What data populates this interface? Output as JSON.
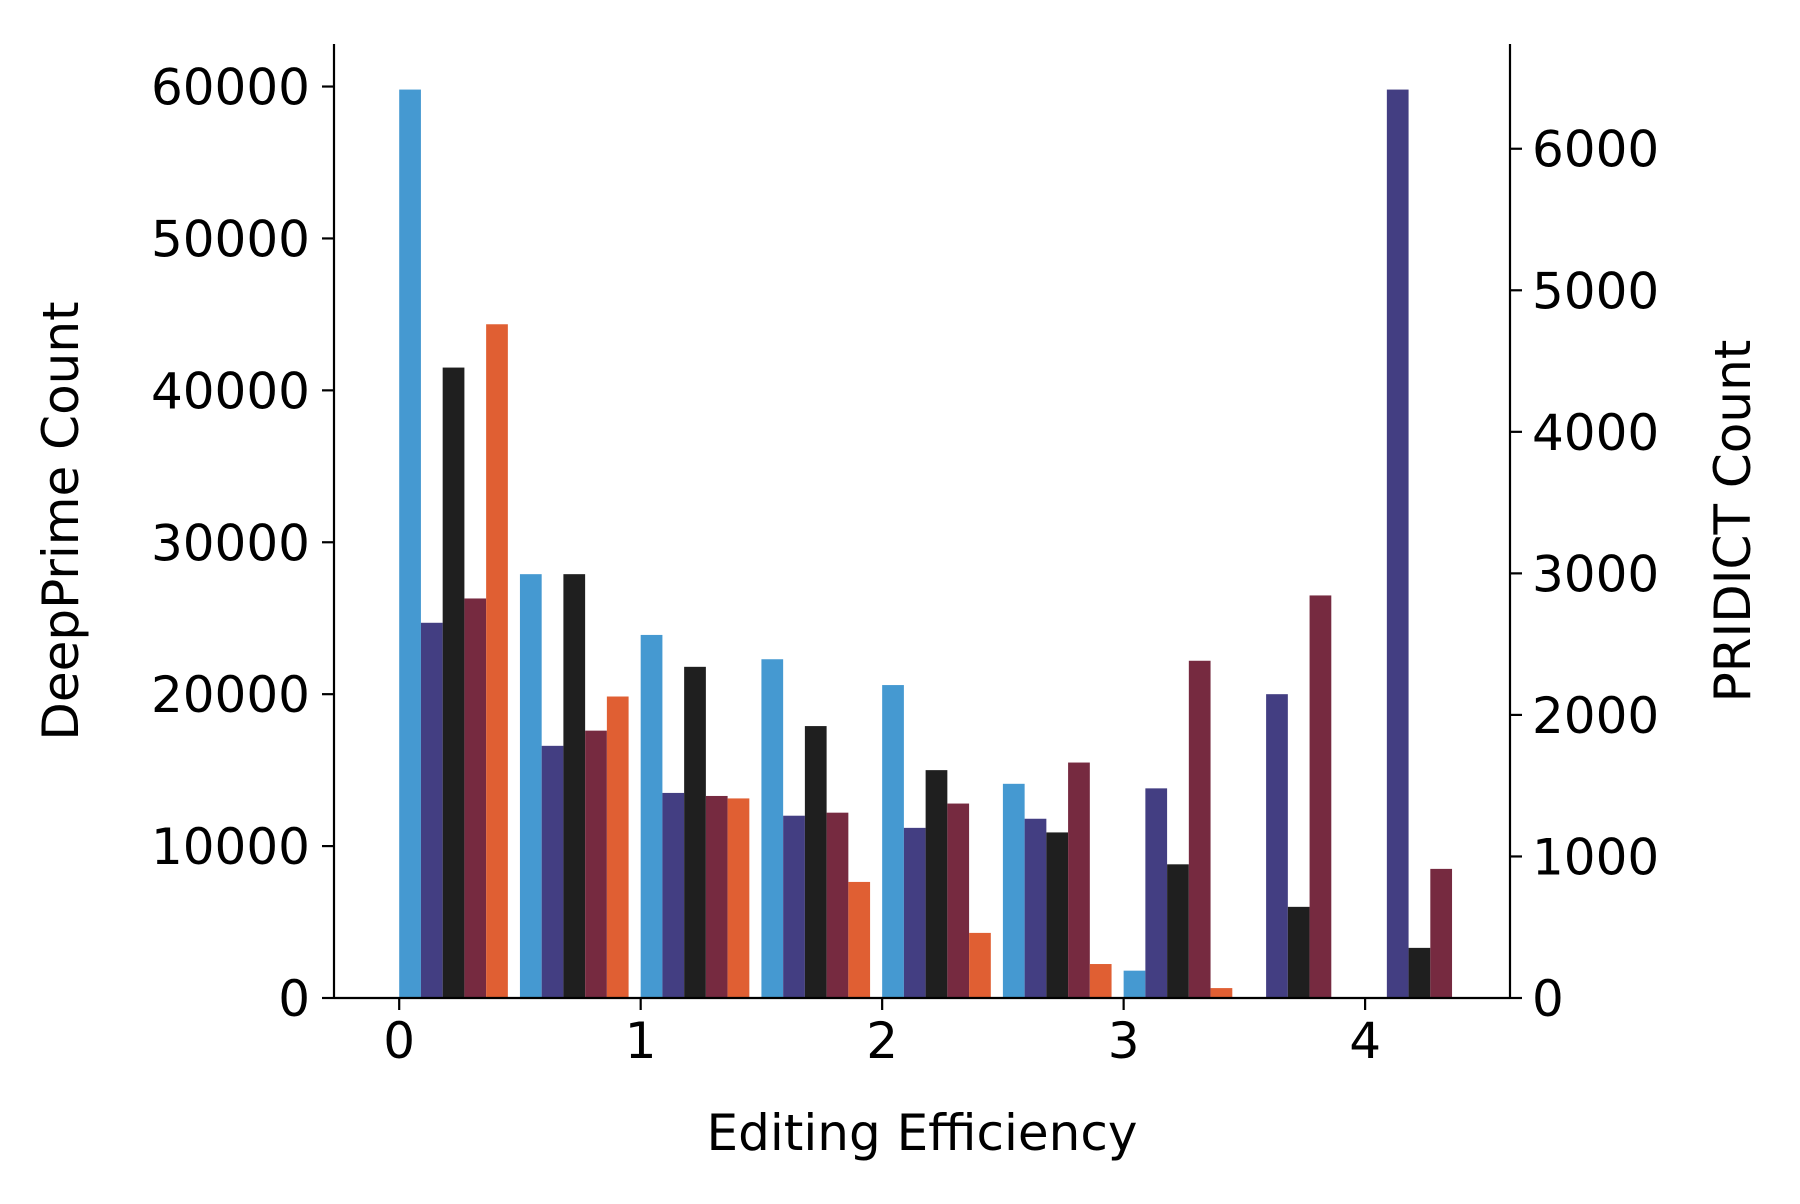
{
  "chart_data": {
    "type": "bar",
    "xlabel": "Editing Efficiency",
    "ylabel_left": "DeepPrime Count",
    "ylabel_right": "PRIDICT Count",
    "x_ticks": [
      "0",
      "1",
      "2",
      "3",
      "4"
    ],
    "y_left_ticks": [
      "0",
      "10000",
      "20000",
      "30000",
      "40000",
      "50000",
      "60000"
    ],
    "y_right_ticks": [
      "0",
      "1000",
      "2000",
      "3000",
      "4000",
      "5000",
      "6000"
    ],
    "xlim": [
      -0.27,
      4.6
    ],
    "ylim_left": [
      0,
      62800
    ],
    "ylim_right": [
      0,
      6740
    ],
    "bin_starts": [
      0,
      0.5,
      1.0,
      1.5,
      2.0,
      2.5,
      3.0,
      3.5,
      4.0
    ],
    "bar_width": 0.09,
    "grid": false,
    "legend": "none",
    "series": [
      {
        "axis": "left",
        "color": "#4599d1",
        "values": [
          59800,
          27900,
          23900,
          22300,
          20600,
          14100,
          1800,
          0,
          0
        ]
      },
      {
        "axis": "left",
        "color": "#433e82",
        "values": [
          24700,
          16600,
          13500,
          12000,
          11200,
          11800,
          13800,
          20000,
          59800
        ]
      },
      {
        "axis": "left",
        "color": "#1f1f1f",
        "values": [
          41500,
          27900,
          21800,
          17900,
          15000,
          10900,
          8800,
          6000,
          3300
        ]
      },
      {
        "axis": "left",
        "color": "#762a40",
        "values": [
          26300,
          17600,
          13300,
          12200,
          12800,
          15500,
          22200,
          26500,
          8500
        ]
      },
      {
        "axis": "right",
        "color": "#e05f33",
        "values": [
          4760,
          2130,
          1410,
          820,
          460,
          240,
          70,
          0,
          0
        ]
      }
    ]
  }
}
